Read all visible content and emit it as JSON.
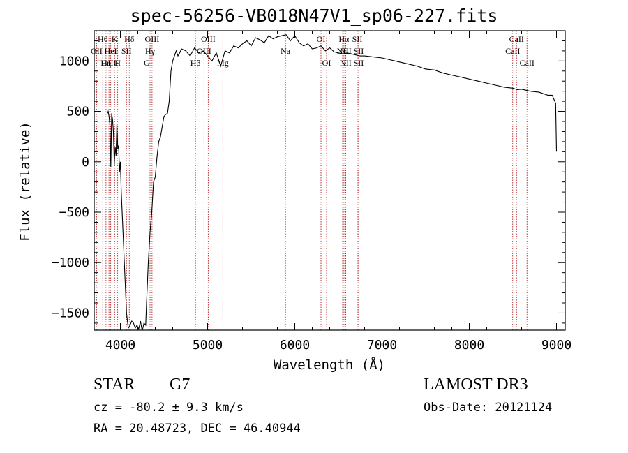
{
  "chart_data": {
    "type": "line",
    "title": "spec-56256-VB018N47V1_sp06-227.fits",
    "xlabel": "Wavelength (Å)",
    "ylabel": "Flux (relative)",
    "xlim": [
      3700,
      9100
    ],
    "ylim": [
      -1670,
      1300
    ],
    "xticks": [
      4000,
      5000,
      6000,
      7000,
      8000,
      9000
    ],
    "yticks": [
      -1500,
      -1000,
      -500,
      0,
      500,
      1000
    ],
    "series": [
      {
        "name": "spectrum",
        "x": [
          3850,
          3860,
          3870,
          3880,
          3890,
          3900,
          3910,
          3920,
          3930,
          3940,
          3950,
          3960,
          3970,
          3980,
          3990,
          4000,
          4010,
          4030,
          4050,
          4070,
          4090,
          4100,
          4110,
          4130,
          4150,
          4170,
          4190,
          4210,
          4230,
          4250,
          4270,
          4290,
          4300,
          4310,
          4320,
          4330,
          4340,
          4360,
          4380,
          4400,
          4420,
          4440,
          4460,
          4480,
          4500,
          4520,
          4540,
          4560,
          4580,
          4600,
          4620,
          4640,
          4660,
          4680,
          4700,
          4750,
          4800,
          4850,
          4900,
          4950,
          5000,
          5050,
          5100,
          5150,
          5200,
          5250,
          5300,
          5350,
          5400,
          5450,
          5500,
          5550,
          5600,
          5650,
          5700,
          5750,
          5800,
          5850,
          5900,
          5950,
          6000,
          6050,
          6100,
          6150,
          6200,
          6250,
          6300,
          6350,
          6400,
          6450,
          6500,
          6550,
          6600,
          6650,
          6700,
          6750,
          6800,
          6900,
          7000,
          7100,
          7200,
          7300,
          7400,
          7500,
          7600,
          7700,
          7800,
          7900,
          8000,
          8100,
          8200,
          8300,
          8400,
          8500,
          8550,
          8600,
          8700,
          8800,
          8900,
          8950,
          8990,
          9000
        ],
        "y": [
          480,
          500,
          450,
          370,
          -50,
          480,
          420,
          300,
          -30,
          150,
          60,
          380,
          130,
          160,
          -100,
          0,
          -300,
          -700,
          -1100,
          -1500,
          -1650,
          -1640,
          -1620,
          -1580,
          -1600,
          -1650,
          -1620,
          -1660,
          -1580,
          -1680,
          -1600,
          -1620,
          -1400,
          -1200,
          -1000,
          -850,
          -700,
          -500,
          -200,
          -150,
          50,
          200,
          250,
          350,
          450,
          470,
          480,
          600,
          900,
          1000,
          1050,
          1100,
          1050,
          1080,
          1120,
          1100,
          1050,
          1130,
          1080,
          1100,
          1050,
          1000,
          1080,
          950,
          1100,
          1080,
          1150,
          1130,
          1170,
          1200,
          1150,
          1230,
          1210,
          1180,
          1250,
          1220,
          1240,
          1250,
          1260,
          1200,
          1250,
          1180,
          1150,
          1170,
          1120,
          1130,
          1150,
          1100,
          1130,
          1090,
          1080,
          1070,
          1080,
          1070,
          1060,
          1050,
          1050,
          1040,
          1030,
          1010,
          990,
          970,
          950,
          920,
          910,
          880,
          860,
          840,
          820,
          800,
          780,
          760,
          740,
          730,
          715,
          720,
          700,
          690,
          660,
          660,
          580,
          100
        ]
      }
    ],
    "line_markers": [
      {
        "label": "Hθ",
        "wavelength": 3798,
        "row": 0
      },
      {
        "label": "OII",
        "wavelength": 3727,
        "row": 1
      },
      {
        "label": "OIII",
        "wavelength": 3869,
        "row": 2
      },
      {
        "label": "Hη",
        "wavelength": 3835,
        "row": 2
      },
      {
        "label": "HeI",
        "wavelength": 3889,
        "row": 1
      },
      {
        "label": "K",
        "wavelength": 3934,
        "row": 0
      },
      {
        "label": "SII",
        "wavelength": 4070,
        "row": 1
      },
      {
        "label": "H",
        "wavelength": 3969,
        "row": 2
      },
      {
        "label": "Hδ",
        "wavelength": 4102,
        "row": 0
      },
      {
        "label": "OIII",
        "wavelength": 4363,
        "row": 0
      },
      {
        "label": "Hγ",
        "wavelength": 4340,
        "row": 1
      },
      {
        "label": "G",
        "wavelength": 4304,
        "row": 2
      },
      {
        "label": "OIII",
        "wavelength": 5007,
        "row": 0
      },
      {
        "label": "OIII",
        "wavelength": 4959,
        "row": 1
      },
      {
        "label": "Hβ",
        "wavelength": 4861,
        "row": 2
      },
      {
        "label": "Mg",
        "wavelength": 5175,
        "row": 2
      },
      {
        "label": "Na",
        "wavelength": 5893,
        "row": 1
      },
      {
        "label": "OI",
        "wavelength": 6300,
        "row": 0
      },
      {
        "label": "OI",
        "wavelength": 6364,
        "row": 2
      },
      {
        "label": "Hα",
        "wavelength": 6563,
        "row": 0
      },
      {
        "label": "SII",
        "wavelength": 6716,
        "row": 0
      },
      {
        "label": "NII",
        "wavelength": 6548,
        "row": 1
      },
      {
        "label": "NII",
        "wavelength": 6583,
        "row": 1
      },
      {
        "label": "SII",
        "wavelength": 6731,
        "row": 1
      },
      {
        "label": "NII",
        "wavelength": 6583,
        "row": 2
      },
      {
        "label": "SII",
        "wavelength": 6731,
        "row": 2
      },
      {
        "label": "CaII",
        "wavelength": 8542,
        "row": 0
      },
      {
        "label": "CaII",
        "wavelength": 8498,
        "row": 1
      },
      {
        "label": "CaII",
        "wavelength": 8662,
        "row": 2
      }
    ],
    "marker_color": "#b22222",
    "line_color": "#000000",
    "grid": false
  },
  "info": {
    "object_class": "STAR",
    "subclass": "G7",
    "survey": "LAMOST DR3",
    "cz": "cz = -80.2 ± 9.3 km/s",
    "obs_date": "Obs-Date: 20121124",
    "radec": "RA =  20.48723, DEC =  46.40944"
  }
}
